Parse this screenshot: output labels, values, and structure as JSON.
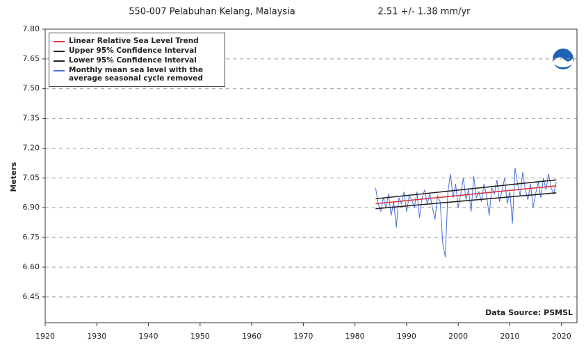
{
  "chart_data": {
    "type": "line",
    "title": "550-007 Pelabuhan Kelang, Malaysia",
    "subtitle": "2.51 +/-  1.38 mm/yr",
    "y_label": "Meters",
    "annotation": "Data Source: PSMSL",
    "xlim": [
      1920,
      2023
    ],
    "ylim": [
      6.32,
      7.8
    ],
    "xticks": [
      1920,
      1930,
      1940,
      1950,
      1960,
      1970,
      1980,
      1990,
      2000,
      2010,
      2020
    ],
    "yticks": [
      {
        "value": 7.8,
        "label": "7.80"
      },
      7.65,
      {
        "value": 7.5,
        "label": "7.50"
      },
      7.35,
      {
        "value": 7.2,
        "label": "7.20"
      },
      7.05,
      {
        "value": 6.9,
        "label": "6.90"
      },
      6.75,
      {
        "value": 6.6,
        "label": "6.60"
      },
      6.45
    ],
    "grid": true,
    "legend": "upper-left",
    "series": [
      {
        "name": "Monthly mean sea level with the average seasonal cycle removed",
        "color": "#4a6fdc",
        "x": [
          1984,
          1984.5,
          1985,
          1985.5,
          1986,
          1986.5,
          1987,
          1987.5,
          1988,
          1988.5,
          1989,
          1989.5,
          1990,
          1990.5,
          1991,
          1991.5,
          1992,
          1992.5,
          1993,
          1993.5,
          1994,
          1994.5,
          1995,
          1995.5,
          1996,
          1996.5,
          1997,
          1997.5,
          1998,
          1998.5,
          1999,
          1999.5,
          2000,
          2000.5,
          2001,
          2001.5,
          2002,
          2002.5,
          2003,
          2003.5,
          2004,
          2004.5,
          2005,
          2005.5,
          2006,
          2006.5,
          2007,
          2007.5,
          2008,
          2008.5,
          2009,
          2009.5,
          2010,
          2010.5,
          2011,
          2011.5,
          2012,
          2012.5,
          2013,
          2013.5,
          2014,
          2014.5,
          2015,
          2015.5,
          2016,
          2016.5,
          2017,
          2017.5,
          2018,
          2018.5,
          2019
        ],
        "values": [
          7.0,
          6.92,
          6.88,
          6.95,
          6.9,
          6.97,
          6.86,
          6.93,
          6.8,
          6.95,
          6.92,
          6.98,
          6.88,
          6.96,
          6.94,
          6.9,
          6.98,
          6.85,
          6.95,
          6.99,
          6.92,
          6.97,
          6.9,
          6.84,
          6.96,
          6.93,
          6.72,
          6.65,
          6.98,
          7.07,
          6.95,
          7.02,
          6.9,
          6.97,
          7.05,
          6.94,
          6.99,
          6.88,
          7.06,
          6.95,
          6.98,
          6.93,
          7.02,
          6.96,
          6.86,
          7.0,
          6.97,
          7.04,
          6.93,
          6.99,
          7.05,
          6.92,
          6.98,
          6.82,
          7.1,
          7.02,
          6.96,
          7.08,
          6.99,
          6.94,
          7.02,
          6.9,
          6.97,
          7.03,
          6.95,
          7.05,
          6.99,
          7.07,
          7.0,
          6.97,
          7.03
        ]
      },
      {
        "name": "Linear Relative Sea Level Trend",
        "color": "#d9343a",
        "x": [
          1984,
          2019
        ],
        "values": [
          6.92,
          7.01
        ]
      },
      {
        "name": "Upper 95% Confidence Interval",
        "color": "#222222",
        "x": [
          1984,
          2019
        ],
        "values": [
          6.945,
          7.04
        ]
      },
      {
        "name": "Lower 95% Confidence Interval",
        "color": "#222222",
        "x": [
          1984,
          2019
        ],
        "values": [
          6.895,
          6.975
        ]
      }
    ]
  }
}
